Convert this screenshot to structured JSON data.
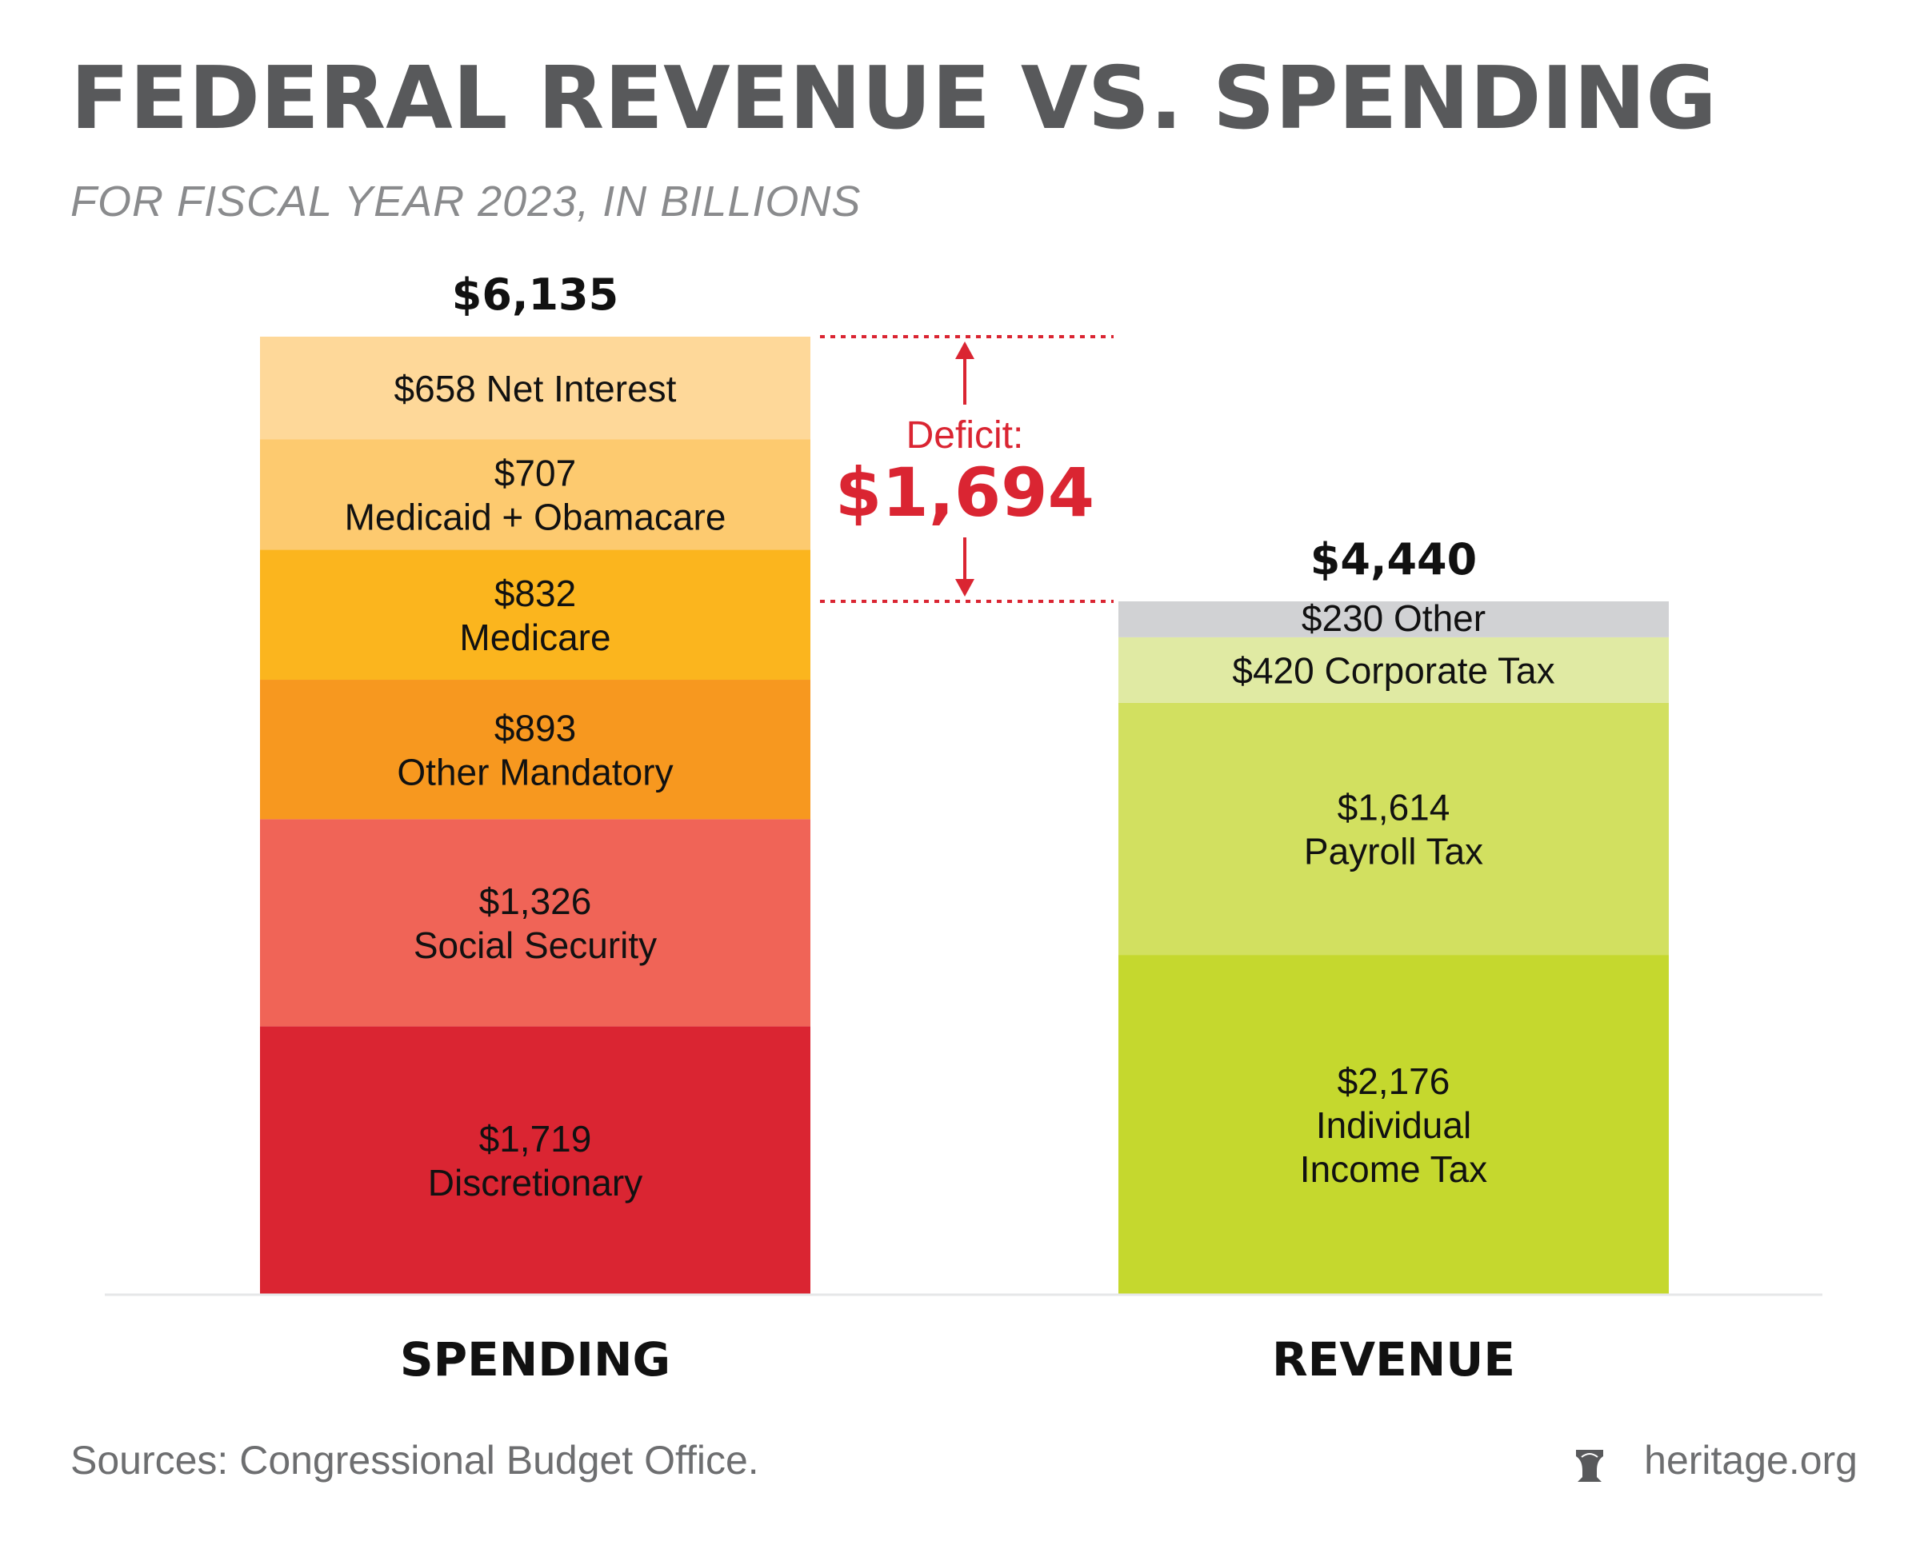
{
  "title": "FEDERAL REVENUE VS. SPENDING",
  "subtitle": "FOR FISCAL YEAR 2023, IN BILLIONS",
  "source": "Sources: Congressional Budget Office.",
  "brand": "heritage.org",
  "brand_icon": "liberty-bell-icon",
  "chart_data": {
    "type": "stacked-bar",
    "categories": [
      "SPENDING",
      "REVENUE"
    ],
    "totals": [
      "$6,135",
      "$4,440"
    ],
    "total_values": [
      6135,
      4440
    ],
    "ylim": [
      0,
      6135
    ],
    "grid": false,
    "stacks": [
      {
        "category": "SPENDING",
        "segments": [
          {
            "name": "Discretionary",
            "value": 1719,
            "lines": [
              "$1,719",
              "Discretionary"
            ],
            "color": "#DA2532"
          },
          {
            "name": "Social Security",
            "value": 1326,
            "lines": [
              "$1,326",
              "Social Security"
            ],
            "color": "#F06457"
          },
          {
            "name": "Other Mandatory",
            "value": 893,
            "lines": [
              "$893",
              "Other Mandatory"
            ],
            "color": "#F7981F"
          },
          {
            "name": "Medicare",
            "value": 832,
            "lines": [
              "$832",
              "Medicare"
            ],
            "color": "#FBB51E"
          },
          {
            "name": "Medicaid + Obamacare",
            "value": 707,
            "lines": [
              "$707",
              "Medicaid + Obamacare"
            ],
            "color": "#FDCA6F"
          },
          {
            "name": "Net Interest",
            "value": 658,
            "lines": [
              "$658 Net Interest"
            ],
            "color": "#FED899"
          }
        ]
      },
      {
        "category": "REVENUE",
        "segments": [
          {
            "name": "Individual Income Tax",
            "value": 2176,
            "lines": [
              "$2,176",
              "Individual",
              "Income Tax"
            ],
            "color": "#C5D82E"
          },
          {
            "name": "Payroll Tax",
            "value": 1614,
            "lines": [
              "$1,614",
              "Payroll Tax"
            ],
            "color": "#D2E060"
          },
          {
            "name": "Corporate Tax",
            "value": 420,
            "lines": [
              "$420 Corporate Tax"
            ],
            "color": "#E0EAA3"
          },
          {
            "name": "Other",
            "value": 230,
            "lines": [
              "$230 Other"
            ],
            "color": "#D1D2D4"
          }
        ]
      }
    ],
    "annotation": {
      "label": "Deficit:",
      "value": "$1,694",
      "amount": 1694,
      "color": "#DA2532"
    }
  }
}
